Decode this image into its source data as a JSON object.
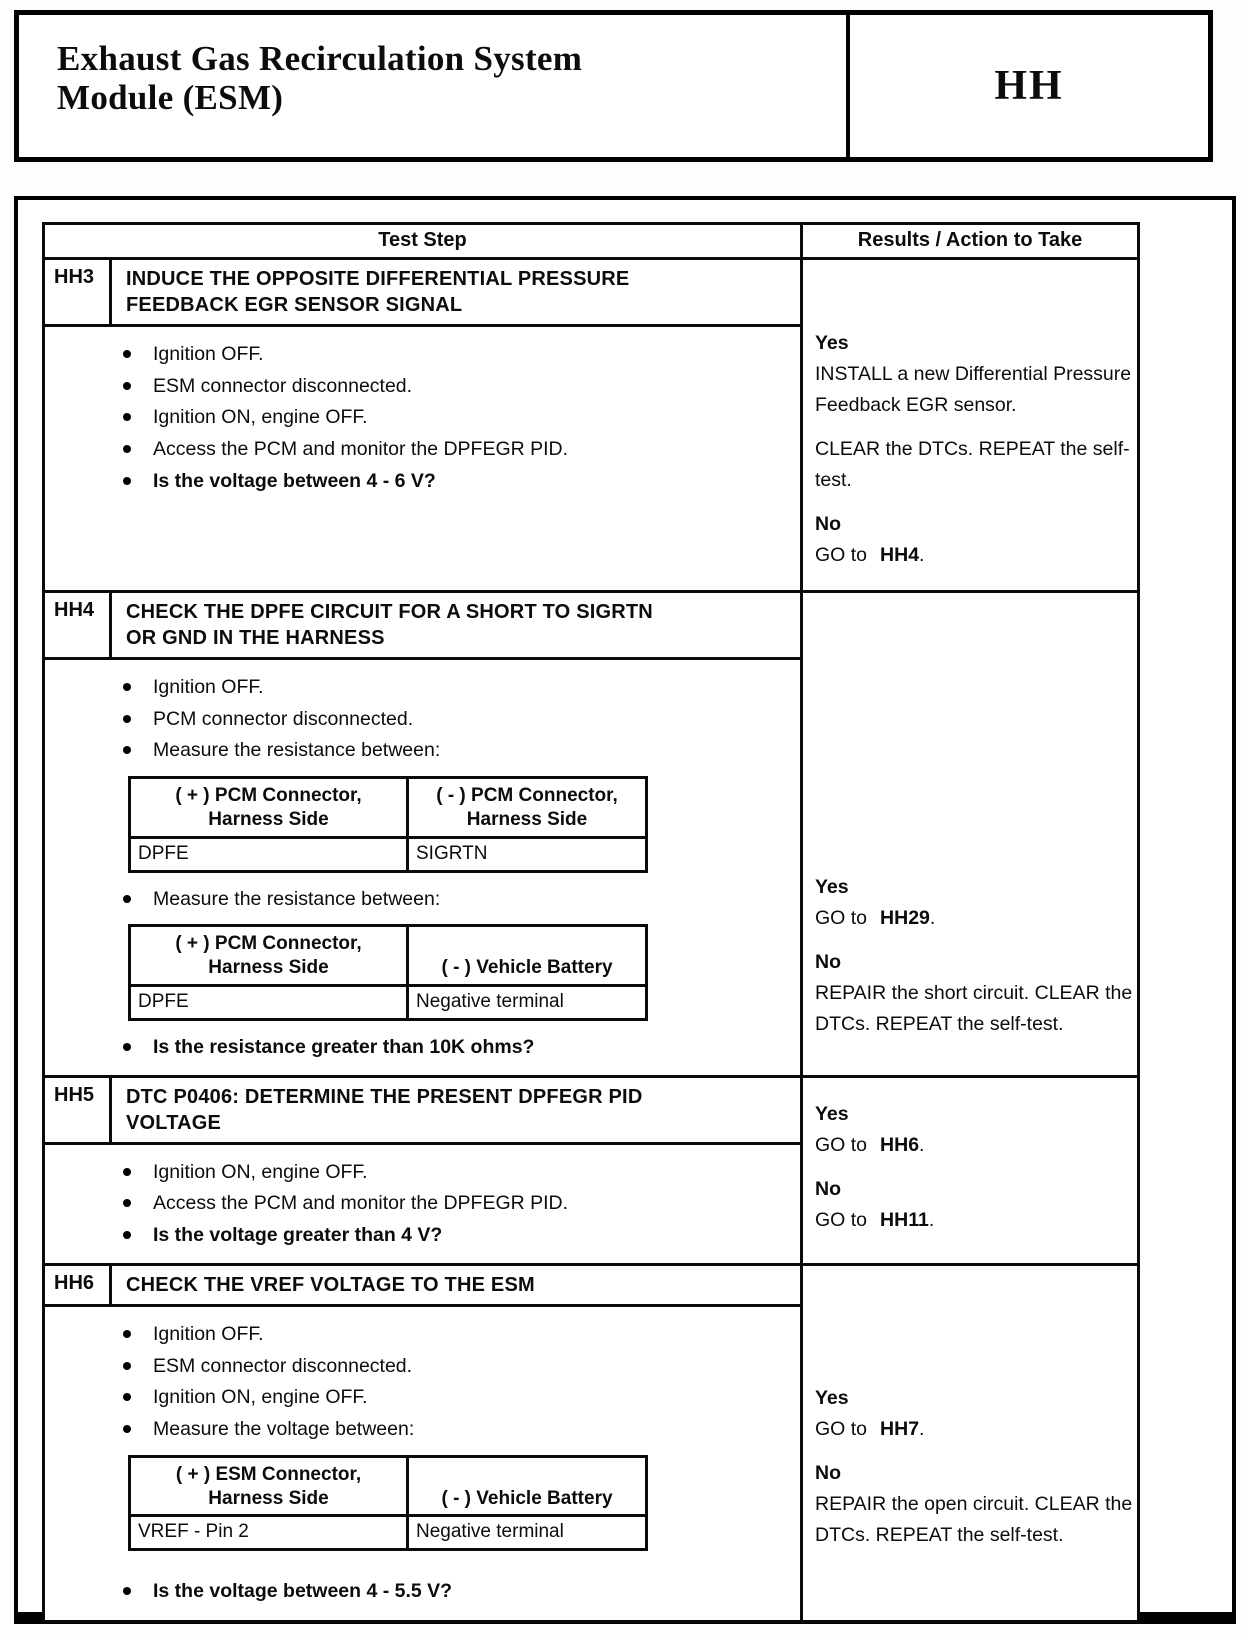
{
  "page": {
    "header": {
      "title": "Exhaust Gas Recirculation System\nModule (ESM)",
      "code": "HH"
    }
  },
  "table": {
    "columns": [
      "Test Step",
      "Results / Action to Take"
    ],
    "rows": [
      {
        "id": "HH3",
        "title": "INDUCE THE OPPOSITE DIFFERENTIAL PRESSURE\nFEEDBACK EGR SENSOR SIGNAL",
        "steps": [
          {
            "type": "bullet",
            "text": "Ignition OFF."
          },
          {
            "type": "bullet",
            "text": "ESM connector disconnected."
          },
          {
            "type": "bullet",
            "text": "Ignition ON, engine OFF."
          },
          {
            "type": "bullet",
            "text": "Access the PCM and monitor the DPFEGR PID."
          },
          {
            "type": "bullet",
            "bold": true,
            "text": "Is the voltage between 4 - 6 V?"
          }
        ],
        "results": [
          {
            "lines": [
              [
                {
                  "t": "Yes",
                  "b": true
                }
              ],
              [
                {
                  "t": "INSTALL a new Differential Pressure Feedback EGR sensor."
                }
              ]
            ]
          },
          {
            "lines": [
              [
                {
                  "t": "CLEAR the DTCs. REPEAT the self-test."
                }
              ]
            ]
          },
          {
            "lines": [
              [
                {
                  "t": "No",
                  "b": true
                }
              ],
              [
                {
                  "t": "GO to"
                },
                {
                  "t": "HH4",
                  "b": true,
                  "ref": true
                },
                {
                  "t": "."
                }
              ]
            ]
          }
        ]
      },
      {
        "id": "HH4",
        "title": "CHECK THE DPFE CIRCUIT FOR A SHORT TO SIGRTN\nOR GND IN THE HARNESS",
        "steps": [
          {
            "type": "bullet",
            "text": "Ignition OFF."
          },
          {
            "type": "bullet",
            "text": "PCM connector disconnected."
          },
          {
            "type": "bullet",
            "text": "Measure the resistance between:"
          },
          {
            "type": "table",
            "headers": [
              [
                "( + ) PCM Connector,",
                "Harness Side"
              ],
              [
                "( - ) PCM Connector,",
                "Harness Side"
              ]
            ],
            "rows": [
              [
                "DPFE",
                "SIGRTN"
              ]
            ]
          },
          {
            "type": "bullet",
            "text": "Measure the resistance between:"
          },
          {
            "type": "table",
            "headers": [
              [
                "( + ) PCM Connector,",
                "Harness Side"
              ],
              [
                "( - ) Vehicle Battery"
              ]
            ],
            "rows": [
              [
                "DPFE",
                "Negative terminal"
              ]
            ]
          },
          {
            "type": "bullet",
            "bold": true,
            "text": "Is the resistance greater than 10K ohms?"
          }
        ],
        "results": [
          {
            "lines": [
              [
                {
                  "t": "Yes",
                  "b": true
                }
              ],
              [
                {
                  "t": "GO to"
                },
                {
                  "t": "HH29",
                  "b": true,
                  "ref": true
                },
                {
                  "t": "."
                }
              ]
            ]
          },
          {
            "lines": [
              [
                {
                  "t": "No",
                  "b": true
                }
              ],
              [
                {
                  "t": "REPAIR the short circuit. CLEAR the DTCs. REPEAT the self-test."
                }
              ]
            ]
          }
        ]
      },
      {
        "id": "HH5",
        "title": "DTC P0406: DETERMINE THE PRESENT DPFEGR PID\nVOLTAGE",
        "steps": [
          {
            "type": "bullet",
            "text": "Ignition ON, engine OFF."
          },
          {
            "type": "bullet",
            "text": "Access the PCM and monitor the DPFEGR PID."
          },
          {
            "type": "bullet",
            "bold": true,
            "text": "Is the voltage greater than 4 V?"
          }
        ],
        "results": [
          {
            "lines": [
              [
                {
                  "t": "Yes",
                  "b": true
                }
              ],
              [
                {
                  "t": "GO to"
                },
                {
                  "t": "HH6",
                  "b": true,
                  "ref": true
                },
                {
                  "t": "."
                }
              ]
            ]
          },
          {
            "lines": [
              [
                {
                  "t": "No",
                  "b": true
                }
              ],
              [
                {
                  "t": "GO to"
                },
                {
                  "t": "HH11",
                  "b": true,
                  "ref": true
                },
                {
                  "t": "."
                }
              ]
            ]
          }
        ]
      },
      {
        "id": "HH6",
        "title": "CHECK THE VREF VOLTAGE TO THE ESM",
        "steps": [
          {
            "type": "bullet",
            "text": "Ignition OFF."
          },
          {
            "type": "bullet",
            "text": "ESM connector disconnected."
          },
          {
            "type": "bullet",
            "text": "Ignition ON, engine OFF."
          },
          {
            "type": "bullet",
            "text": "Measure the voltage between:"
          },
          {
            "type": "table",
            "headers": [
              [
                "( + ) ESM Connector,",
                "Harness Side"
              ],
              [
                "( - ) Vehicle Battery"
              ]
            ],
            "rows": [
              [
                "VREF - Pin 2",
                "Negative terminal"
              ]
            ]
          },
          {
            "type": "bullet",
            "bold": true,
            "text": "Is the voltage between 4 - 5.5 V?"
          }
        ],
        "results": [
          {
            "lines": [
              [
                {
                  "t": "Yes",
                  "b": true
                }
              ],
              [
                {
                  "t": "GO to"
                },
                {
                  "t": "HH7",
                  "b": true,
                  "ref": true
                },
                {
                  "t": "."
                }
              ]
            ]
          },
          {
            "lines": [
              [
                {
                  "t": "No",
                  "b": true
                }
              ],
              [
                {
                  "t": "REPAIR the open circuit. CLEAR the DTCs. REPEAT the self-test."
                }
              ]
            ]
          }
        ]
      }
    ]
  }
}
